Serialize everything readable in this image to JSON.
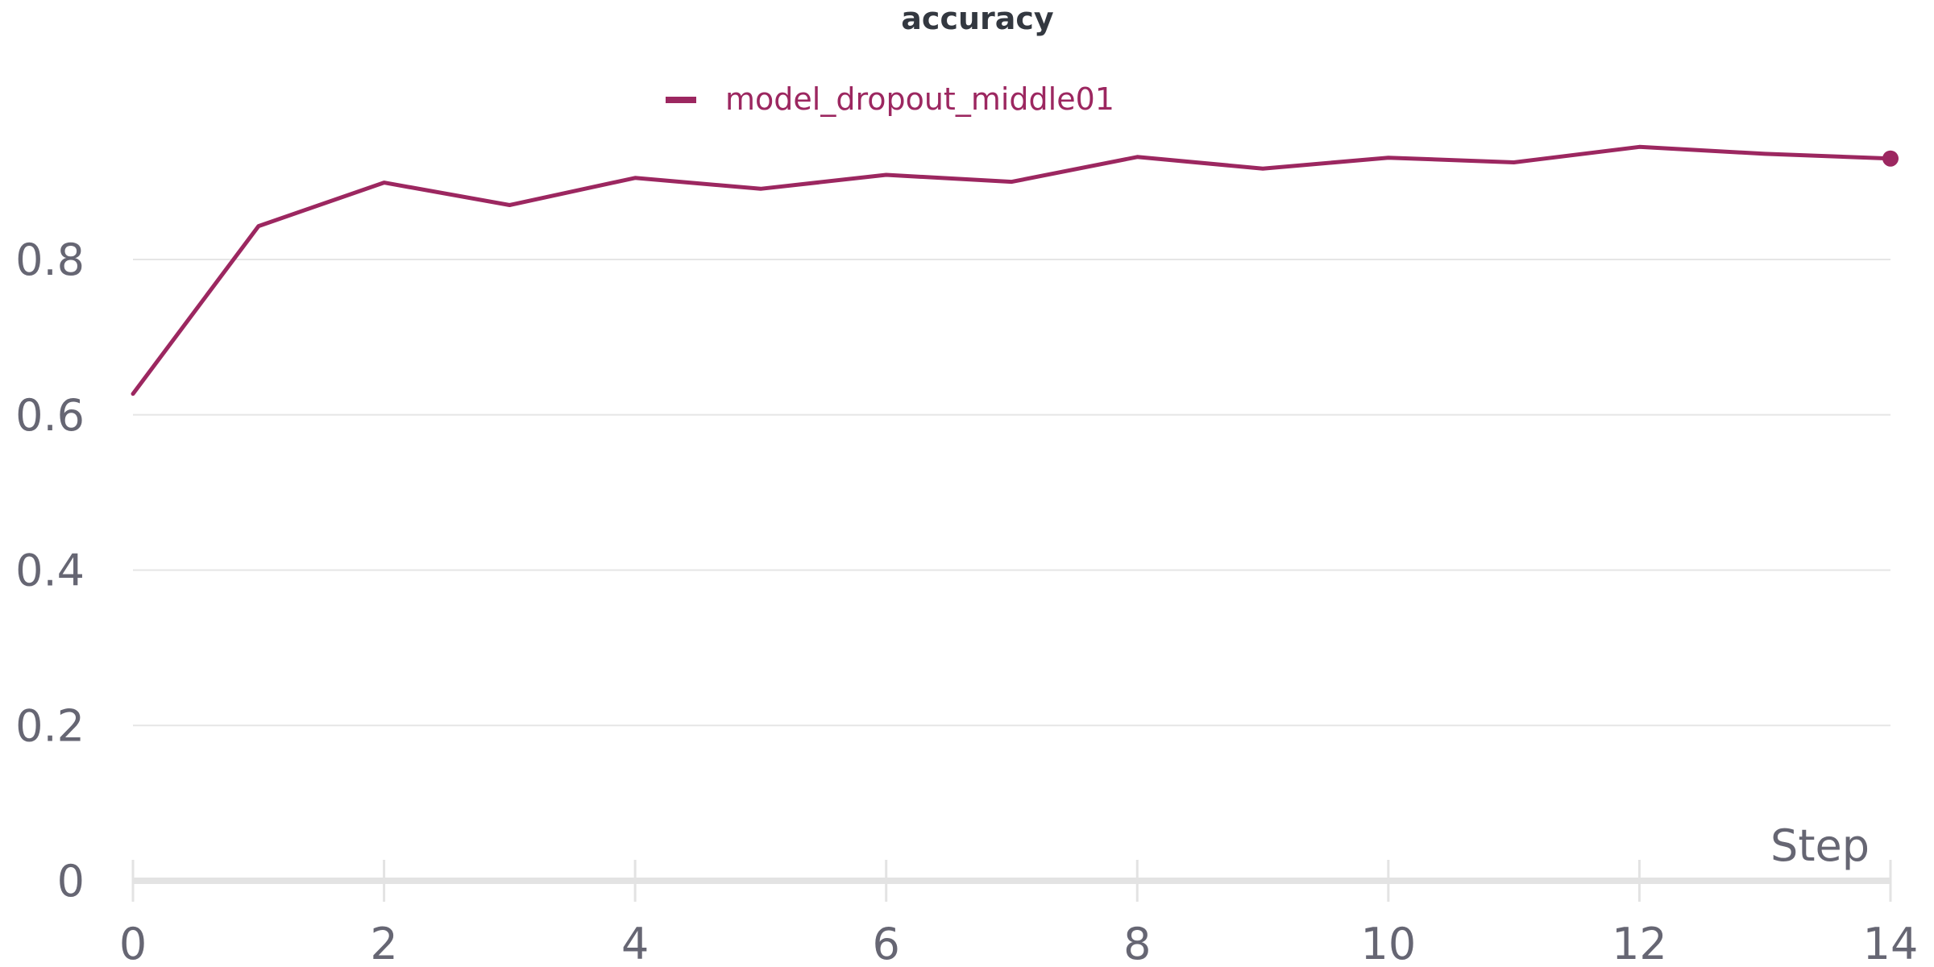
{
  "colors": {
    "series": "#9c2760",
    "text": "#666673",
    "title": "#333840",
    "grid": "#e6e6e6",
    "axis": "#e3e3e3"
  },
  "chart_data": {
    "type": "line",
    "title": "accuracy",
    "xlabel": "Step",
    "ylabel": "",
    "xlim": [
      0,
      14
    ],
    "ylim": [
      0,
      0.92
    ],
    "x_ticks": [
      0,
      2,
      4,
      6,
      8,
      10,
      12,
      14
    ],
    "y_ticks": [
      0,
      0.2,
      0.4,
      0.6,
      0.8
    ],
    "grid": "horizontal",
    "legend_position": "top",
    "series": [
      {
        "name": "model_dropout_middle01",
        "x": [
          0,
          1,
          2,
          3,
          4,
          5,
          6,
          7,
          8,
          9,
          10,
          11,
          12,
          13,
          14
        ],
        "values": [
          0.627,
          0.843,
          0.899,
          0.87,
          0.905,
          0.891,
          0.909,
          0.9,
          0.932,
          0.917,
          0.931,
          0.925,
          0.945,
          0.936,
          0.93
        ],
        "last_point_marker": true
      }
    ]
  }
}
